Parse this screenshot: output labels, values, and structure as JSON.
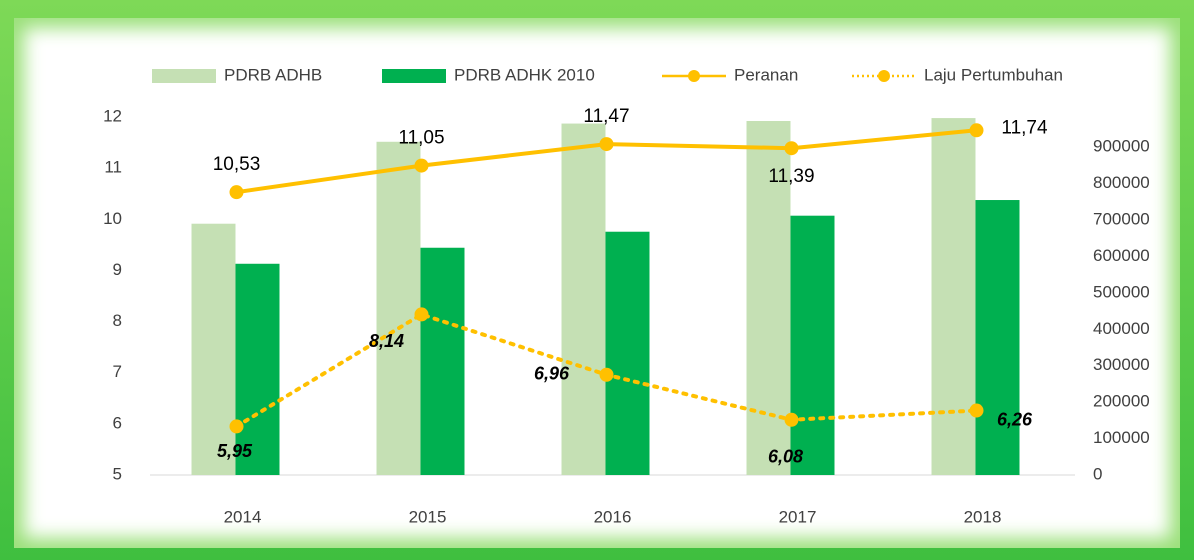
{
  "chart_data": {
    "type": "combo",
    "categories": [
      "2014",
      "2015",
      "2016",
      "2017",
      "2018"
    ],
    "series": [
      {
        "name": "PDRB ADHB",
        "type": "bar",
        "axis": "y2",
        "color": "#c5e0b4",
        "values": [
          690000,
          915000,
          965000,
          972000,
          980000
        ]
      },
      {
        "name": "PDRB ADHK 2010",
        "type": "bar",
        "axis": "y2",
        "color": "#00b050",
        "values": [
          580000,
          624000,
          668000,
          712000,
          755000
        ]
      },
      {
        "name": "Peranan",
        "type": "line",
        "axis": "y",
        "color": "#ffc000",
        "dashed": false,
        "values": [
          10.53,
          11.05,
          11.47,
          11.39,
          11.74
        ],
        "value_labels": [
          "10,53",
          "11,05",
          "11,47",
          "11,39",
          "11,74"
        ]
      },
      {
        "name": "Laju Pertumbuhan",
        "type": "line",
        "axis": "y",
        "color": "#ffc000",
        "dashed": true,
        "values": [
          5.95,
          8.14,
          6.96,
          6.08,
          6.26
        ],
        "value_labels": [
          "5,95",
          "8,14",
          "6,96",
          "6,08",
          "6,26"
        ]
      }
    ],
    "ylim": [
      5,
      12
    ],
    "yticks": [
      5,
      6,
      7,
      8,
      9,
      10,
      11,
      12
    ],
    "y2lim": [
      0,
      983000
    ],
    "y2ticks": [
      0,
      100000,
      200000,
      300000,
      400000,
      500000,
      600000,
      700000,
      800000,
      900000
    ],
    "grid": false,
    "legend": "top"
  }
}
